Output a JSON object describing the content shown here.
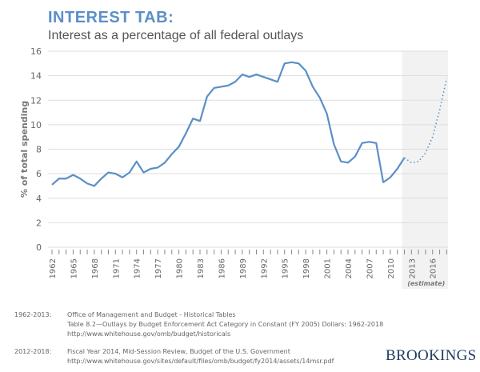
{
  "header": {
    "title": "INTEREST TAB:",
    "subtitle": "Interest as a percentage of all federal outlays"
  },
  "chart_data": {
    "type": "line",
    "title": "INTEREST TAB:",
    "subtitle": "Interest as a percentage of all federal outlays",
    "ylabel": "% of total spending",
    "xlabel": "",
    "ylim": [
      0,
      16
    ],
    "yticks": [
      0,
      2,
      4,
      6,
      8,
      10,
      12,
      14,
      16
    ],
    "xlim": [
      1962,
      2018
    ],
    "xticks": [
      1962,
      1965,
      1968,
      1971,
      1974,
      1977,
      1980,
      1983,
      1986,
      1989,
      1992,
      1995,
      1998,
      2001,
      2004,
      2007,
      2010,
      2013,
      2016
    ],
    "grid": true,
    "estimate_label": "(estimate)",
    "estimate_range": [
      2012,
      2018
    ],
    "series": [
      {
        "style": "solid",
        "x": [
          1962,
          1963,
          1964,
          1965,
          1966,
          1967,
          1968,
          1969,
          1970,
          1971,
          1972,
          1973,
          1974,
          1975,
          1976,
          1977,
          1978,
          1979,
          1980,
          1981,
          1982,
          1983,
          1984,
          1985,
          1986,
          1987,
          1988,
          1989,
          1990,
          1991,
          1992,
          1993,
          1994,
          1995,
          1996,
          1997,
          1998,
          1999,
          2000,
          2001,
          2002,
          2003,
          2004,
          2005,
          2006,
          2007,
          2008,
          2009,
          2010,
          2011,
          2012
        ],
        "values": [
          5.1,
          5.6,
          5.6,
          5.9,
          5.6,
          5.2,
          5.0,
          5.6,
          6.1,
          6.0,
          5.7,
          6.1,
          7.0,
          6.1,
          6.4,
          6.5,
          6.9,
          7.6,
          8.2,
          9.3,
          10.5,
          10.3,
          12.3,
          13.0,
          13.1,
          13.2,
          13.5,
          14.1,
          13.9,
          14.1,
          13.9,
          13.7,
          13.5,
          15.0,
          15.1,
          15.0,
          14.4,
          13.1,
          12.2,
          10.9,
          8.4,
          7.0,
          6.9,
          7.4,
          8.5,
          8.6,
          8.5,
          5.3,
          5.7,
          6.4,
          7.3
        ]
      },
      {
        "style": "dotted",
        "x": [
          2012,
          2013,
          2014,
          2015,
          2016,
          2017,
          2018
        ],
        "values": [
          7.3,
          6.9,
          7.0,
          7.7,
          9.0,
          11.2,
          13.8
        ]
      }
    ],
    "colors": {
      "line": "#5b8fc7",
      "grid": "#dddddd",
      "estimate_bg": "#f2f2f2"
    }
  },
  "sources": [
    {
      "label": "1962-2013:",
      "lines": [
        "Office of Management and Budget - Historical Tables",
        "Table 8.2—Outlays by Budget Enforcement Act Category in Constant (FY 2005) Dollars: 1962-2018",
        "http://www.whitehouse.gov/omb/budget/historicals"
      ]
    },
    {
      "label": "2012-2018:",
      "lines": [
        "Fiscal Year 2014, Mid-Session Review, Budget of the U.S. Government",
        "http://www.whitehouse.gov/sites/default/files/omb/budget/fy2014/assets/14msr.pdf"
      ]
    }
  ],
  "logo": "BROOKINGS"
}
